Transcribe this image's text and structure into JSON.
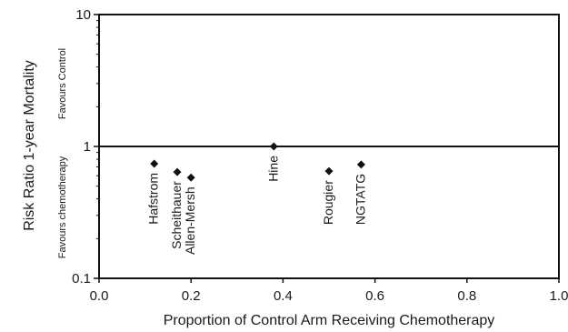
{
  "chart_data": {
    "type": "scatter",
    "xlabel": "Proportion of Control Arm Receiving Chemotherapy",
    "ylabel": "Risk Ratio 1-year Mortality",
    "xlim": [
      0,
      1
    ],
    "ylim": [
      0.1,
      10
    ],
    "yscale": "log",
    "x_ticks": [
      "0.0",
      "0.2",
      "0.4",
      "0.6",
      "0.8",
      "1.0"
    ],
    "y_ticks": [
      "0.1",
      "1",
      "10"
    ],
    "reference_line_y": 1,
    "region_labels": {
      "upper": "Favours Control",
      "lower": "Favours chemotherapy"
    },
    "grid": false,
    "marker": "diamond",
    "points": [
      {
        "label": "Hafstrom",
        "x": 0.12,
        "y": 0.74
      },
      {
        "label": "Scheithauer",
        "x": 0.17,
        "y": 0.64
      },
      {
        "label": "Allen-Mersh",
        "x": 0.2,
        "y": 0.58
      },
      {
        "label": "Hine",
        "x": 0.38,
        "y": 1.0
      },
      {
        "label": "Rougier",
        "x": 0.5,
        "y": 0.65
      },
      {
        "label": "NGTATG",
        "x": 0.57,
        "y": 0.73
      }
    ]
  }
}
